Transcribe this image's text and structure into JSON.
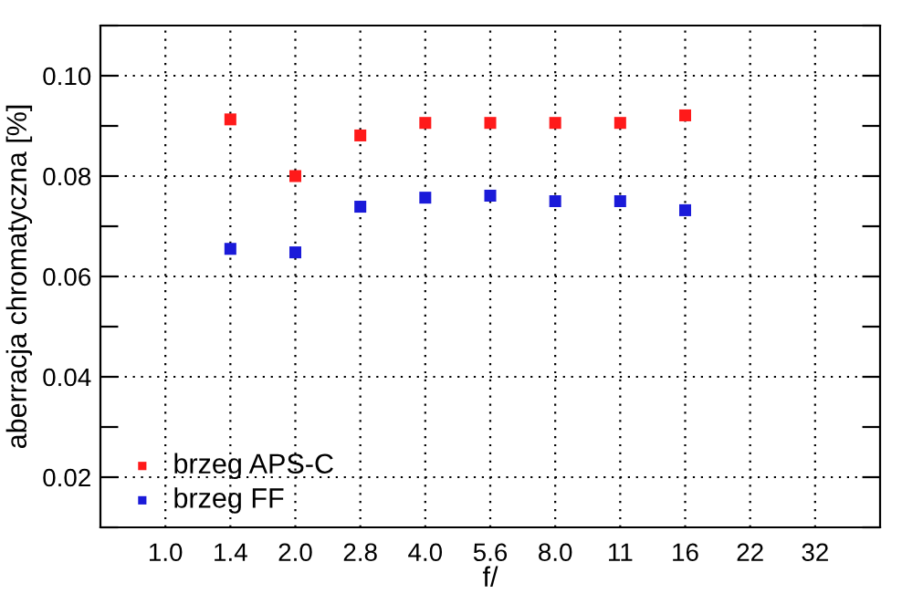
{
  "chart_data": {
    "type": "scatter",
    "xlabel": "f/",
    "ylabel": "aberracja chromatyczna [%]",
    "categories": [
      "1.0",
      "1.4",
      "2.0",
      "2.8",
      "4.0",
      "5.6",
      "8.0",
      "11",
      "16",
      "22",
      "32"
    ],
    "series": [
      {
        "name": "brzeg APS-C",
        "color": "#ff1a1a",
        "values": [
          null,
          0.0913,
          0.08,
          0.0881,
          0.0906,
          0.0906,
          0.0906,
          0.0906,
          0.0921,
          null,
          null
        ]
      },
      {
        "name": "brzeg FF",
        "color": "#1a1ad9",
        "values": [
          null,
          0.0655,
          0.0648,
          0.0739,
          0.0757,
          0.0761,
          0.075,
          0.075,
          0.0732,
          null,
          null
        ]
      }
    ],
    "ylim": [
      0.01,
      0.11
    ],
    "yticks": [
      {
        "value": 0.01,
        "label": null
      },
      "0.02",
      {
        "value": 0.03,
        "label": null
      },
      {
        "value": 0.04,
        "label": "0.04"
      },
      {
        "value": 0.05,
        "label": null
      },
      {
        "value": 0.06,
        "label": "0.06"
      },
      {
        "value": 0.07,
        "label": null
      },
      {
        "value": 0.08,
        "label": "0.08"
      },
      {
        "value": 0.09,
        "label": null
      },
      {
        "value": 0.1,
        "label": "0.10"
      },
      {
        "value": 0.11,
        "label": null
      }
    ],
    "grid": true,
    "legend": "bottom left",
    "marker": "square"
  }
}
